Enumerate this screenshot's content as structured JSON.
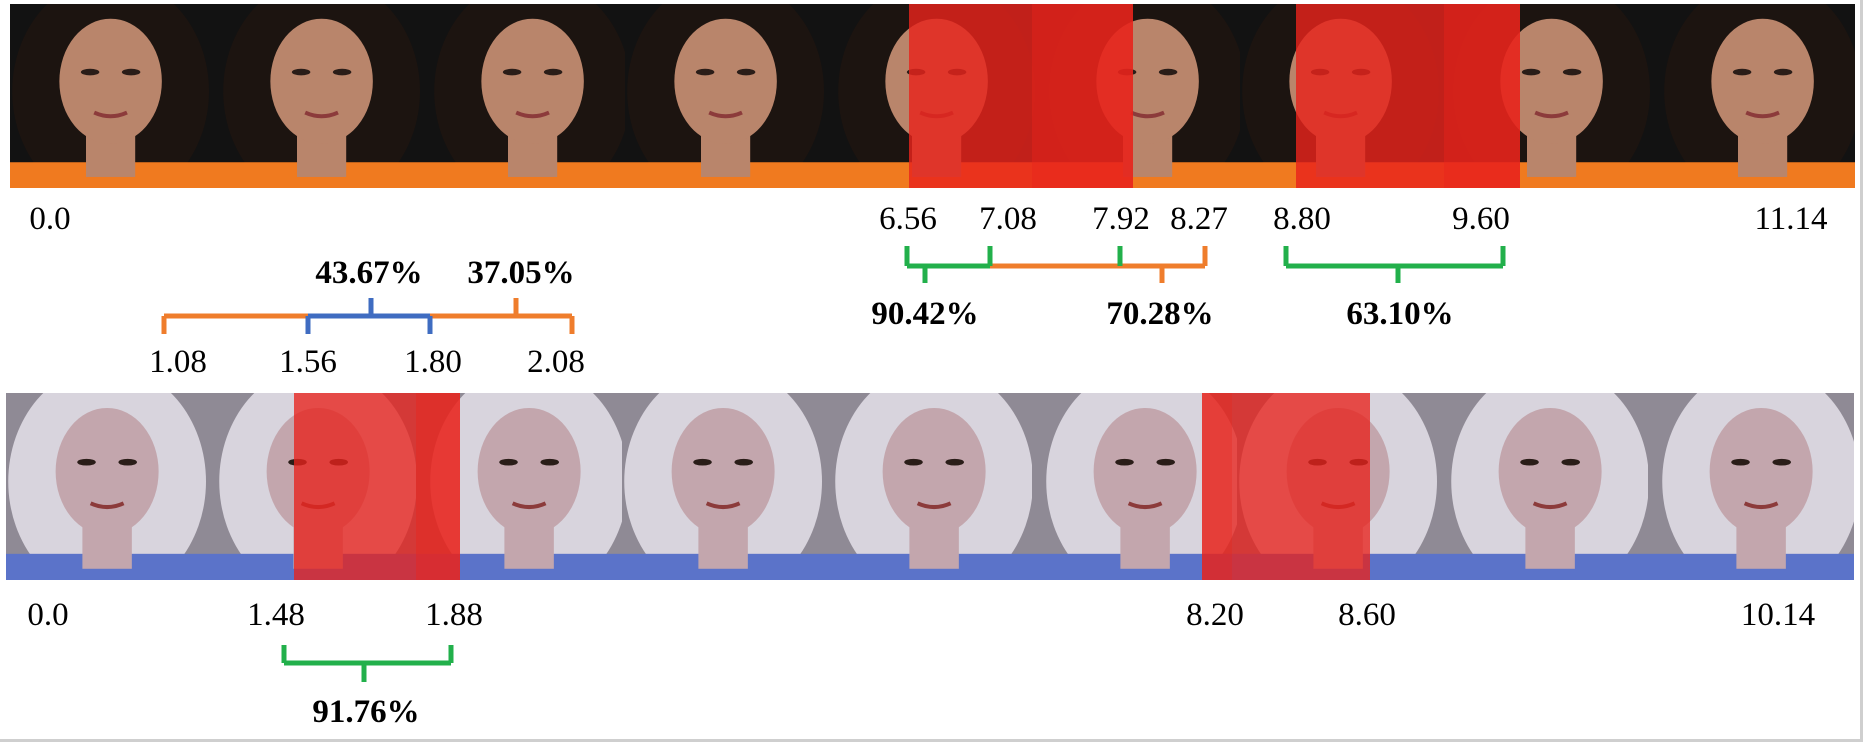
{
  "colors": {
    "forged_overlay": "#e8231c",
    "green_bracket": "#22b04b",
    "orange_bracket": "#ef7d2c",
    "blue_bracket": "#3f6cc1",
    "face1_bg": "#121212",
    "face1_hair": "#1c1410",
    "face1_skin": "#b9856b",
    "face1_shirt": "#f07a1f",
    "face2_bg": "#8f8a95",
    "face2_hair": "#d8d4dd",
    "face2_skin": "#c3a6ad",
    "face2_shirt": "#5b73c9"
  },
  "top_strip": {
    "frame_count": 9,
    "tick_labels": [
      "0.0",
      "6.56",
      "7.08",
      "7.92",
      "8.27",
      "8.80",
      "9.60",
      "11.14"
    ],
    "forged_segments": [
      {
        "start": 6.56,
        "end": 7.92,
        "kind": "red"
      },
      {
        "start": 8.8,
        "end": 9.6,
        "kind": "red"
      }
    ],
    "predictions": [
      {
        "label": "90.42%",
        "start": "6.56",
        "end": "7.08",
        "color": "green"
      },
      {
        "label": "70.28%",
        "start": "7.08",
        "end": "8.27",
        "color": "orange"
      },
      {
        "label": "63.10%",
        "start": "8.80",
        "end": "9.60",
        "color": "green"
      }
    ]
  },
  "middle_annotations": {
    "tick_labels": [
      "1.08",
      "1.56",
      "1.80",
      "2.08"
    ],
    "predictions": [
      {
        "label": "43.67%",
        "start": "1.56",
        "end": "1.80",
        "color": "blue"
      },
      {
        "label": "37.05%",
        "start": "1.08",
        "end": "2.08",
        "color": "orange"
      }
    ]
  },
  "bottom_strip": {
    "frame_count": 9,
    "tick_labels": [
      "0.0",
      "1.48",
      "1.88",
      "8.20",
      "8.60",
      "10.14"
    ],
    "forged_segments": [
      {
        "start": 1.48,
        "end": 1.88,
        "kind": "red"
      },
      {
        "start": 8.2,
        "end": 8.6,
        "kind": "red"
      }
    ],
    "predictions": [
      {
        "label": "91.76%",
        "start": "1.48",
        "end": "1.88",
        "color": "green"
      }
    ]
  }
}
